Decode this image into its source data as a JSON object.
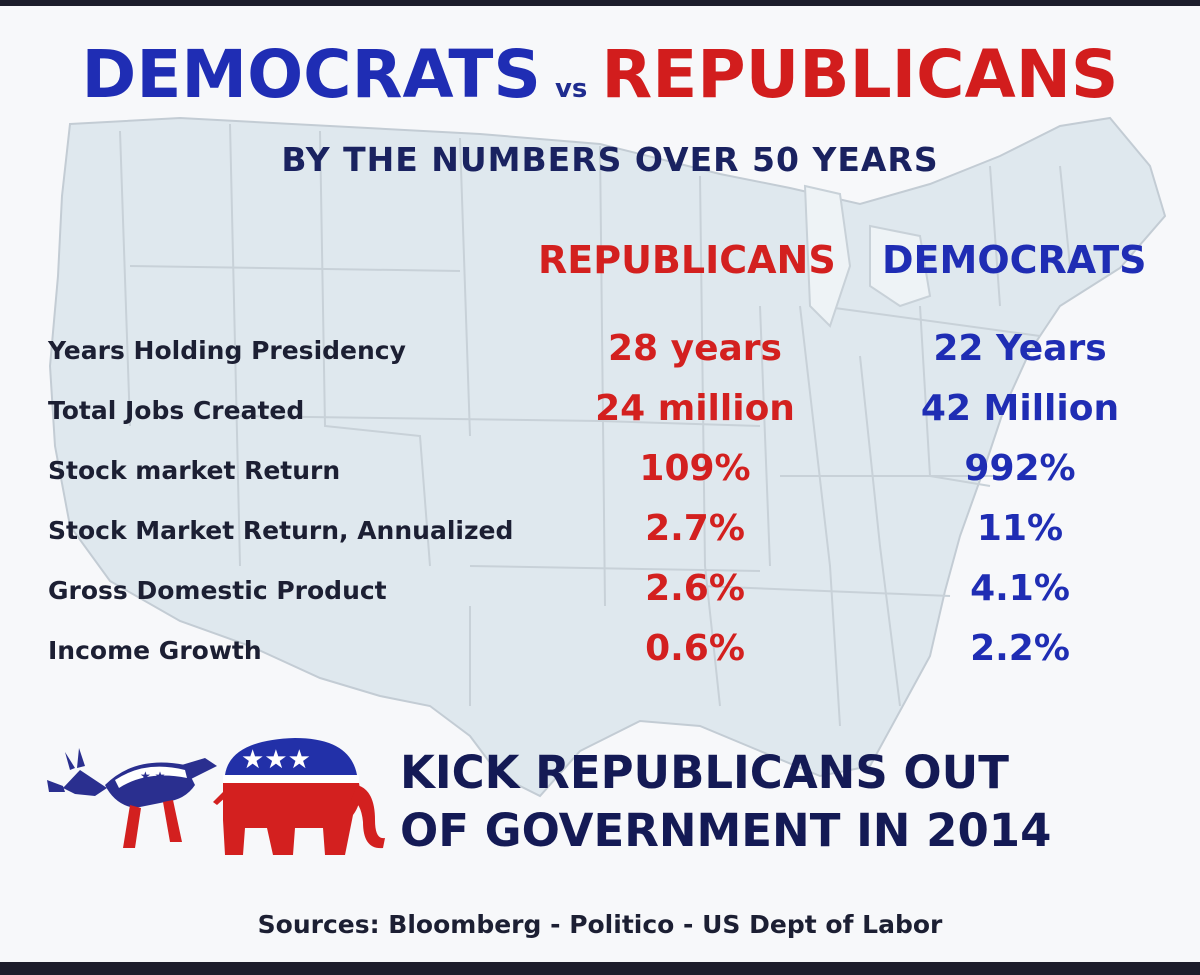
{
  "header": {
    "left_party": "DEMOCRATS",
    "vs": "vs",
    "right_party": "REPUBLICANS",
    "subtitle": "BY THE NUMBERS OVER 50 YEARS"
  },
  "columns": {
    "republicans": "REPUBLICANS",
    "democrats": "DEMOCRATS"
  },
  "rows": [
    {
      "label": "Years Holding Presidency",
      "republicans": "28 years",
      "democrats": "22 Years"
    },
    {
      "label": "Total Jobs Created",
      "republicans": "24 million",
      "democrats": "42 Million"
    },
    {
      "label": "Stock market Return",
      "republicans": "109%",
      "democrats": "992%"
    },
    {
      "label": "Stock Market Return, Annualized",
      "republicans": "2.7%",
      "democrats": "11%"
    },
    {
      "label": "Gross Domestic Product",
      "republicans": "2.6%",
      "democrats": "4.1%"
    },
    {
      "label": "Income Growth",
      "republicans": "0.6%",
      "democrats": "2.2%"
    }
  ],
  "slogan": {
    "line1": "KICK REPUBLICANS OUT",
    "line2": "OF GOVERNMENT IN 2014"
  },
  "sources": "Sources:  Bloomberg - Politico - US Dept of Labor",
  "colors": {
    "democrat_blue": "#1f2db4",
    "republican_red": "#d3201f",
    "navy_text": "#141a55",
    "map_fill": "#dfe8ee"
  },
  "icons": [
    "donkey-icon",
    "elephant-icon"
  ]
}
